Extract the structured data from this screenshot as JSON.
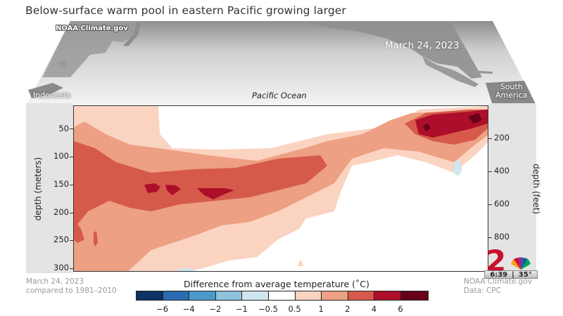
{
  "header": {
    "title": "Below-surface warm pool in eastern Pacific growing larger",
    "watermark": "NOAA Climate.gov"
  },
  "map": {
    "date": "March 24, 2023",
    "labels": {
      "west": "Indonesia",
      "east_line1": "South",
      "east_line2": "America",
      "center": "Pacific Ocean"
    }
  },
  "axes": {
    "left_label": "depth (meters)",
    "left_ticks": [
      "50",
      "100",
      "150",
      "200",
      "250",
      "300"
    ],
    "right_label": "depth (feet)",
    "right_ticks": [
      "200",
      "400",
      "600",
      "800"
    ]
  },
  "footer": {
    "left_line1": "March 24, 2023",
    "left_line2": "compared to 1981–2010",
    "right_line1": "NOAA Climate.gov",
    "right_line2": "Data: CPC"
  },
  "colorbar": {
    "title": "Difference from average temperature (˚C)",
    "colors": [
      "#0d3366",
      "#2b6cb0",
      "#4a9bcb",
      "#8dc3dd",
      "#cfe5ef",
      "#ffffff",
      "#fbd3c1",
      "#eda083",
      "#d65a4a",
      "#ad0f2a",
      "#680019"
    ],
    "tick_labels": [
      "−6",
      "−4",
      "−2",
      "−1",
      "−0.5",
      "0.5",
      "1",
      "2",
      "4",
      "6"
    ]
  },
  "tv_bug": {
    "channel": "2",
    "time": "6:39",
    "temp": "35°"
  },
  "chart_data": {
    "type": "heatmap",
    "title": "Below-surface warm pool in eastern Pacific growing larger",
    "subtitle": "March 24, 2023 compared to 1981–2010",
    "xlabel": "Pacific Ocean (Indonesia → South America)",
    "ylabel": "depth (meters)",
    "ylabel_secondary": "depth (feet)",
    "ylim": [
      0,
      300
    ],
    "y_ticks": [
      50,
      100,
      150,
      200,
      250,
      300
    ],
    "y2_ticks": [
      200,
      400,
      600,
      800
    ],
    "colorbar_label": "Difference from average temperature (˚C)",
    "colorbar_levels": [
      -6,
      -4,
      -2,
      -1,
      -0.5,
      0.5,
      1,
      2,
      4,
      6
    ],
    "features": [
      {
        "region": "western-central Pacific",
        "depth_m": [
          90,
          200
        ],
        "anomaly_c": "2 to 4, peaks >4 near 150 m"
      },
      {
        "region": "eastern Pacific near South America",
        "depth_m": [
          0,
          75
        ],
        "anomaly_c": "4 to >6 near surface"
      },
      {
        "region": "eastern deep Pacific",
        "depth_m": [
          100,
          300
        ],
        "anomaly_c": "-0.5 to 0.5 (near average), small -0.5 to -1 patch near 120 m"
      }
    ],
    "grid": false,
    "legend_position": "bottom"
  }
}
